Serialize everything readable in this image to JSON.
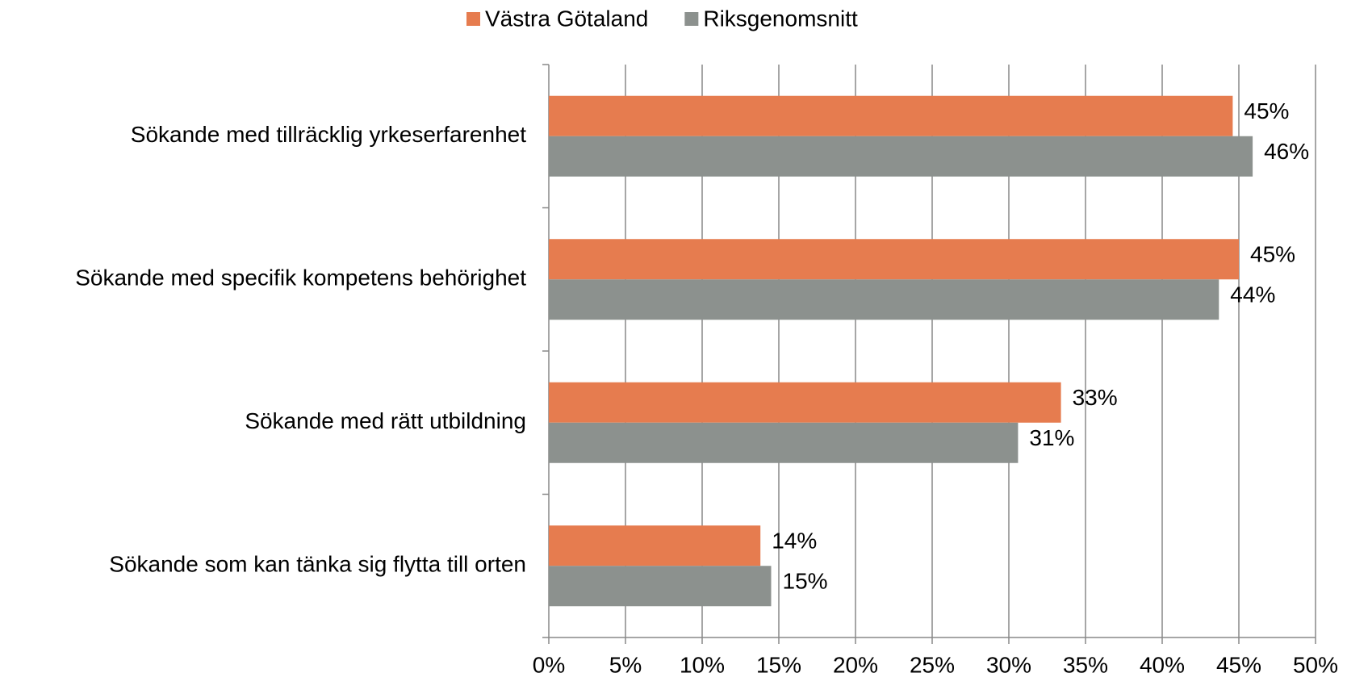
{
  "chart_data": {
    "type": "bar",
    "orientation": "horizontal",
    "categories": [
      "Sökande med tillräcklig yrkeserfarenhet",
      "Sökande med specifik kompetens behörighet",
      "Sökande med rätt utbildning",
      "Sökande som kan tänka sig flytta till orten"
    ],
    "series": [
      {
        "name": "Västra Götaland",
        "color": "#e67c4f",
        "values": [
          44.6,
          45.0,
          33.4,
          13.8
        ],
        "value_labels": [
          "45%",
          "45%",
          "33%",
          "14%"
        ]
      },
      {
        "name": "Riksgenomsnitt",
        "color": "#8c918e",
        "values": [
          45.9,
          43.7,
          30.6,
          14.5
        ],
        "value_labels": [
          "46%",
          "44%",
          "31%",
          "15%"
        ]
      }
    ],
    "xlim": [
      0,
      50
    ],
    "xticks": [
      {
        "value": 0,
        "label": "0%"
      },
      {
        "value": 5,
        "label": "5%"
      },
      {
        "value": 10,
        "label": "10%"
      },
      {
        "value": 15,
        "label": "15%"
      },
      {
        "value": 20,
        "label": "20%"
      },
      {
        "value": 25,
        "label": "25%"
      },
      {
        "value": 30,
        "label": "30%"
      },
      {
        "value": 35,
        "label": "35%"
      },
      {
        "value": 40,
        "label": "40%"
      },
      {
        "value": 45,
        "label": "45%"
      },
      {
        "value": 50,
        "label": "50%"
      }
    ],
    "grid": true,
    "legend": "top"
  }
}
